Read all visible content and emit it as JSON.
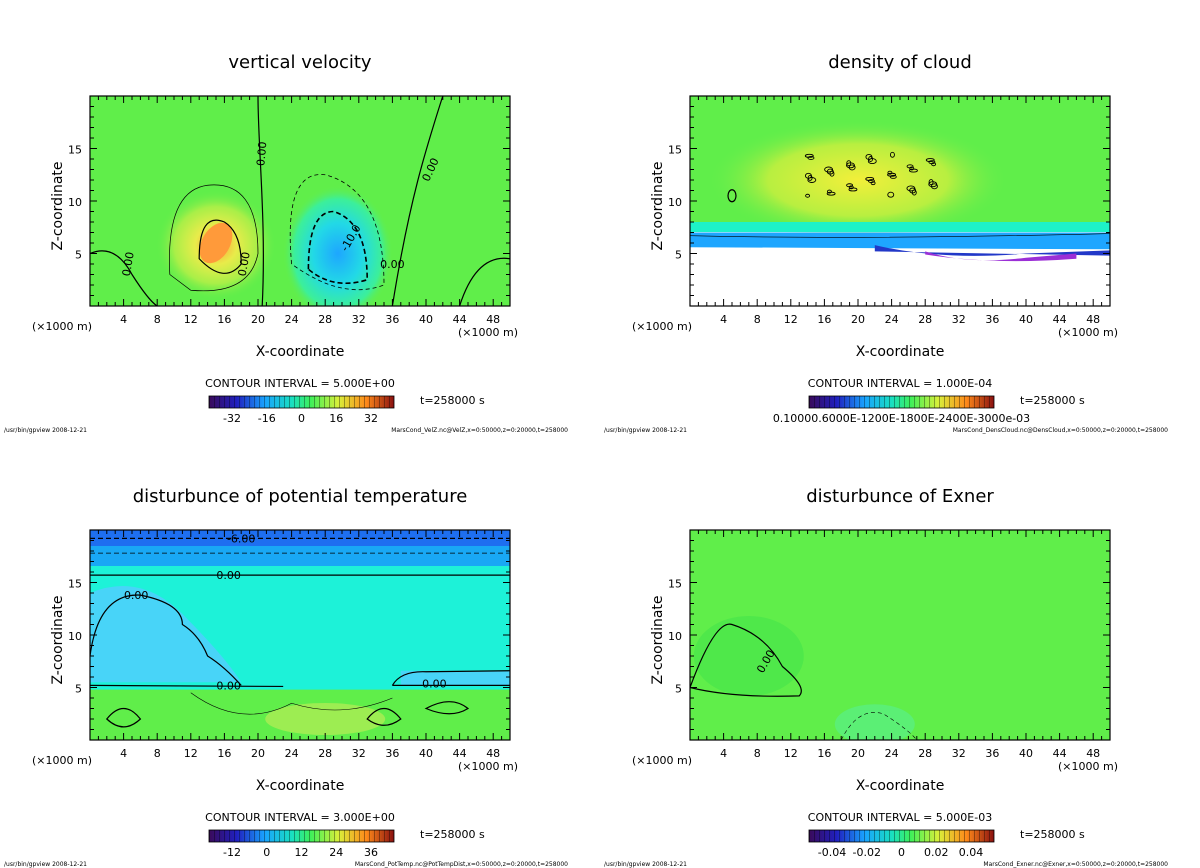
{
  "chart_data": [
    {
      "type": "heatmap",
      "title": "vertical velocity",
      "xlabel": "X-coordinate",
      "ylabel": "Z-coordinate",
      "x_unit": "(×1000 m)",
      "xlim": [
        0,
        50
      ],
      "ylim": [
        0,
        20
      ],
      "x_ticks": [
        "4",
        "8",
        "12",
        "16",
        "20",
        "24",
        "28",
        "32",
        "36",
        "40",
        "44",
        "48"
      ],
      "y_ticks": [
        "5",
        "10",
        "15"
      ],
      "contour_interval": "CONTOUR INTERVAL = 5.000E+00",
      "time": "t=258000 s",
      "colorbar_ticks": [
        "-32",
        "-16",
        "0",
        "16",
        "32"
      ],
      "contour_labels": [
        "0.00",
        "0.00",
        "0.00",
        "0.00",
        "-10.0",
        "0.00"
      ],
      "footer_left": "/usr/bin/gpview  2008-12-21",
      "footer_right": "MarsCond_VelZ.nc@VelZ,x=0:50000,z=0:20000,t=258000"
    },
    {
      "type": "heatmap",
      "title": "density of cloud",
      "xlabel": "X-coordinate",
      "ylabel": "Z-coordinate",
      "x_unit": "(×1000 m)",
      "xlim": [
        0,
        50
      ],
      "ylim": [
        0,
        20
      ],
      "x_ticks": [
        "4",
        "8",
        "12",
        "16",
        "20",
        "24",
        "28",
        "32",
        "36",
        "40",
        "44",
        "48"
      ],
      "y_ticks": [
        "5",
        "10",
        "15"
      ],
      "contour_interval": "CONTOUR INTERVAL = 1.000E-04",
      "time": "t=258000 s",
      "colorbar_ticks": [
        "0.10000.6000E-1200E-1800E-2400E-3000e-03"
      ],
      "contour_labels": [],
      "footer_left": "/usr/bin/gpview  2008-12-21",
      "footer_right": "MarsCond_DensCloud.nc@DensCloud,x=0:50000,z=0:20000,t=258000"
    },
    {
      "type": "heatmap",
      "title": "disturbunce of potential temperature",
      "xlabel": "X-coordinate",
      "ylabel": "Z-coordinate",
      "x_unit": "(×1000 m)",
      "xlim": [
        0,
        50
      ],
      "ylim": [
        0,
        20
      ],
      "x_ticks": [
        "4",
        "8",
        "12",
        "16",
        "20",
        "24",
        "28",
        "32",
        "36",
        "40",
        "44",
        "48"
      ],
      "y_ticks": [
        "5",
        "10",
        "15"
      ],
      "contour_interval": "CONTOUR INTERVAL = 3.000E+00",
      "time": "t=258000 s",
      "colorbar_ticks": [
        "-12",
        "0",
        "12",
        "24",
        "36"
      ],
      "contour_labels": [
        "-6.00",
        "0.00",
        "0.00",
        "0.00",
        "0.00"
      ],
      "footer_left": "/usr/bin/gpview  2008-12-21",
      "footer_right": "MarsCond_PotTemp.nc@PotTempDist,x=0:50000,z=0:20000,t=258000"
    },
    {
      "type": "heatmap",
      "title": "disturbunce of Exner",
      "xlabel": "X-coordinate",
      "ylabel": "Z-coordinate",
      "x_unit": "(×1000 m)",
      "xlim": [
        0,
        50
      ],
      "ylim": [
        0,
        20
      ],
      "x_ticks": [
        "4",
        "8",
        "12",
        "16",
        "20",
        "24",
        "28",
        "32",
        "36",
        "40",
        "44",
        "48"
      ],
      "y_ticks": [
        "5",
        "10",
        "15"
      ],
      "contour_interval": "CONTOUR INTERVAL = 5.000E-03",
      "time": "t=258000 s",
      "colorbar_ticks": [
        "-0.04",
        "-0.02",
        "0",
        "0.02",
        "0.04"
      ],
      "contour_labels": [
        "0.00"
      ],
      "footer_left": "/usr/bin/gpview  2008-12-21",
      "footer_right": "MarsCond_Exner.nc@Exner,x=0:50000,z=0:20000,t=258000"
    }
  ],
  "colors": {
    "field_green": "#60ee4a",
    "field_cyan": "#1df2d8",
    "field_blue": "#1ea6ff",
    "field_purple": "#9b2fd6",
    "field_yellow": "#e5f24a"
  }
}
